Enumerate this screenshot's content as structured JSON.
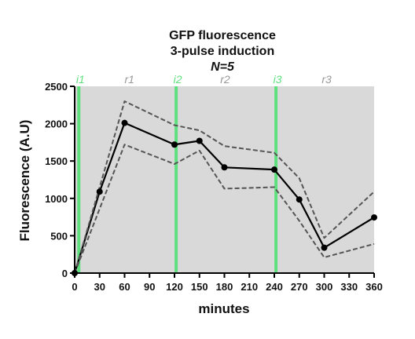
{
  "chart_data": {
    "type": "line",
    "title": "GFP fluorescence",
    "subtitle": "3-pulse induction",
    "subtitle2": "N=5",
    "xlabel": "minutes",
    "ylabel": "Fluorescence  (A.U)",
    "xlim": [
      0,
      360
    ],
    "ylim": [
      0,
      2500
    ],
    "x_ticks": [
      0,
      30,
      60,
      90,
      120,
      150,
      180,
      210,
      240,
      270,
      300,
      330,
      360
    ],
    "y_ticks": [
      0,
      500,
      1000,
      1500,
      2000,
      2500
    ],
    "background_color": "#d9d9d9",
    "pulse_color": "#5fe07f",
    "rest_label_color": "#999999",
    "pulse_markers": [
      {
        "label": "i1",
        "x": 5,
        "kind": "induction"
      },
      {
        "label": "r1",
        "x": 64,
        "kind": "rest"
      },
      {
        "label": "i2",
        "x": 122,
        "kind": "induction"
      },
      {
        "label": "r2",
        "x": 179,
        "kind": "rest"
      },
      {
        "label": "i3",
        "x": 242,
        "kind": "induction"
      },
      {
        "label": "r3",
        "x": 301,
        "kind": "rest"
      }
    ],
    "series": [
      {
        "role": "mean",
        "style": "solid",
        "color": "#000000",
        "x": [
          0,
          30,
          60,
          120,
          150,
          180,
          240,
          270,
          300,
          360
        ],
        "y": [
          0,
          1090,
          2010,
          1720,
          1770,
          1415,
          1385,
          985,
          340,
          745
        ]
      },
      {
        "role": "upper",
        "style": "dashed",
        "color": "#555555",
        "x": [
          0,
          60,
          120,
          150,
          180,
          240,
          270,
          300,
          360
        ],
        "y": [
          0,
          2300,
          1980,
          1910,
          1700,
          1610,
          1270,
          470,
          1090
        ]
      },
      {
        "role": "lower",
        "style": "dashed",
        "color": "#555555",
        "x": [
          0,
          60,
          120,
          150,
          180,
          240,
          270,
          300,
          360
        ],
        "y": [
          0,
          1720,
          1460,
          1640,
          1130,
          1150,
          700,
          210,
          390
        ]
      }
    ]
  }
}
